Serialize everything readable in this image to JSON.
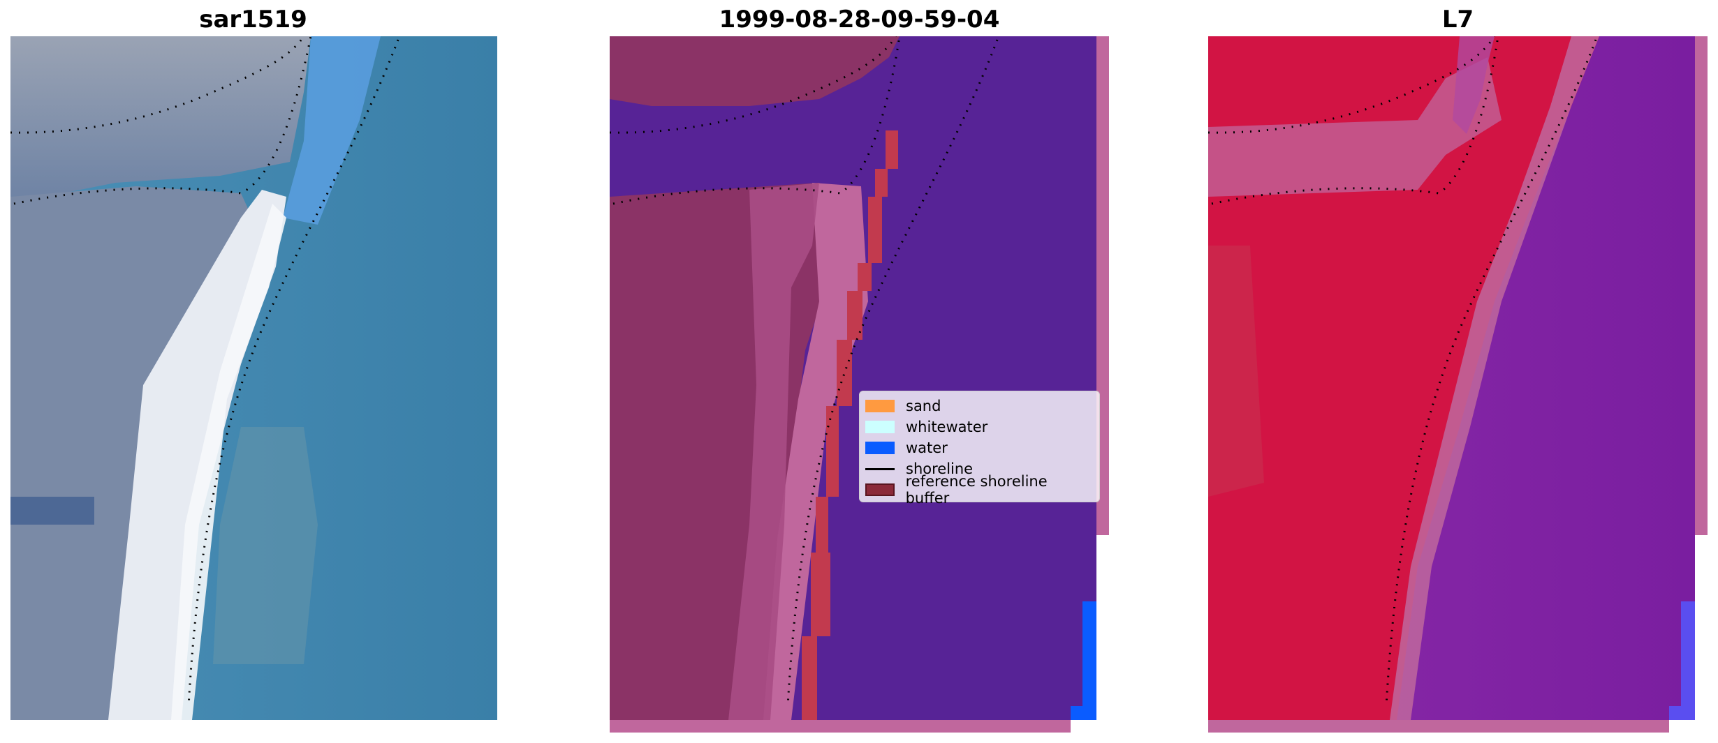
{
  "panels": [
    {
      "title": "sar1519"
    },
    {
      "title": "1999-08-28-09-59-04"
    },
    {
      "title": "L7"
    }
  ],
  "legend": {
    "items": [
      {
        "label": "sand",
        "color": "#ff9a40",
        "kind": "patch"
      },
      {
        "label": "whitewater",
        "color": "#ccffff",
        "kind": "patch"
      },
      {
        "label": "water",
        "color": "#0a5cff",
        "kind": "patch"
      },
      {
        "label": "shoreline",
        "color": "#000000",
        "kind": "line"
      },
      {
        "label": "reference shoreline buffer",
        "color": "#8b2a3a",
        "kind": "patch-edge"
      }
    ]
  },
  "colors": {
    "rgb_sea": "#3f87b0",
    "rgb_sand": "#e8ecf2",
    "rgb_land": "#7e8ea8",
    "class_water_overlay": "#572396",
    "class_land_overlay": "#8b3366",
    "class_beach_overlay": "#c0679d",
    "buffer_red": "#c23a4e",
    "ndwi_land": "#d21444",
    "ndwi_water": "#7a1ea0"
  }
}
